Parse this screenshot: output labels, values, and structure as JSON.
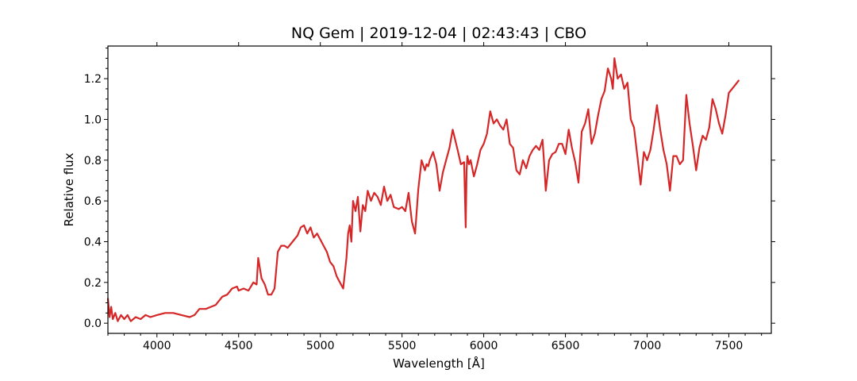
{
  "chart_data": {
    "type": "line",
    "title": "NQ Gem | 2019-12-04 | 02:43:43 | CBO",
    "xlabel": "Wavelength [Å]",
    "ylabel": "Relative flux",
    "xlim": [
      3700,
      7760
    ],
    "ylim": [
      -0.05,
      1.36
    ],
    "x_ticks": [
      4000,
      4500,
      5000,
      5500,
      6000,
      6500,
      7000,
      7500
    ],
    "x_tick_labels": [
      "4000",
      "4500",
      "5000",
      "5500",
      "6000",
      "6500",
      "7000",
      "7500"
    ],
    "y_ticks": [
      0.0,
      0.2,
      0.4,
      0.6,
      0.8,
      1.0,
      1.2
    ],
    "y_tick_labels": [
      "0.0",
      "0.2",
      "0.4",
      "0.6",
      "0.8",
      "1.0",
      "1.2"
    ],
    "grid": false,
    "series": [
      {
        "color": "#d62728",
        "x": [
          3700,
          3710,
          3720,
          3730,
          3745,
          3760,
          3780,
          3800,
          3820,
          3840,
          3870,
          3900,
          3930,
          3960,
          4000,
          4050,
          4100,
          4150,
          4200,
          4230,
          4260,
          4300,
          4330,
          4360,
          4400,
          4430,
          4460,
          4490,
          4500,
          4530,
          4560,
          4590,
          4610,
          4620,
          4640,
          4660,
          4680,
          4700,
          4720,
          4740,
          4760,
          4780,
          4800,
          4830,
          4860,
          4880,
          4900,
          4920,
          4940,
          4960,
          4980,
          5000,
          5020,
          5040,
          5060,
          5080,
          5100,
          5120,
          5140,
          5160,
          5170,
          5180,
          5190,
          5200,
          5215,
          5230,
          5245,
          5260,
          5275,
          5290,
          5310,
          5330,
          5350,
          5370,
          5390,
          5410,
          5430,
          5450,
          5480,
          5500,
          5520,
          5540,
          5560,
          5580,
          5600,
          5620,
          5640,
          5650,
          5660,
          5670,
          5690,
          5710,
          5730,
          5750,
          5770,
          5790,
          5810,
          5840,
          5860,
          5880,
          5890,
          5895,
          5900,
          5910,
          5920,
          5940,
          5960,
          5980,
          6000,
          6020,
          6040,
          6060,
          6080,
          6100,
          6120,
          6140,
          6160,
          6180,
          6200,
          6220,
          6240,
          6260,
          6280,
          6300,
          6320,
          6340,
          6360,
          6370,
          6380,
          6400,
          6420,
          6440,
          6460,
          6480,
          6500,
          6520,
          6540,
          6560,
          6580,
          6600,
          6620,
          6640,
          6660,
          6680,
          6700,
          6720,
          6740,
          6760,
          6780,
          6790,
          6800,
          6820,
          6840,
          6860,
          6880,
          6900,
          6920,
          6940,
          6960,
          6980,
          7000,
          7020,
          7040,
          7060,
          7080,
          7100,
          7120,
          7140,
          7160,
          7180,
          7200,
          7220,
          7240,
          7260,
          7280,
          7300,
          7320,
          7340,
          7360,
          7380,
          7400,
          7420,
          7440,
          7460,
          7480,
          7500,
          7520,
          7540,
          7560
        ],
        "values": [
          0.12,
          0.03,
          0.08,
          0.02,
          0.05,
          0.01,
          0.04,
          0.02,
          0.04,
          0.01,
          0.03,
          0.02,
          0.04,
          0.03,
          0.04,
          0.05,
          0.05,
          0.04,
          0.03,
          0.04,
          0.07,
          0.07,
          0.08,
          0.09,
          0.13,
          0.14,
          0.17,
          0.18,
          0.16,
          0.17,
          0.16,
          0.2,
          0.19,
          0.32,
          0.22,
          0.19,
          0.14,
          0.14,
          0.17,
          0.35,
          0.38,
          0.38,
          0.37,
          0.4,
          0.43,
          0.47,
          0.48,
          0.44,
          0.47,
          0.42,
          0.44,
          0.41,
          0.38,
          0.35,
          0.3,
          0.28,
          0.23,
          0.2,
          0.17,
          0.32,
          0.44,
          0.48,
          0.4,
          0.6,
          0.55,
          0.62,
          0.45,
          0.58,
          0.55,
          0.65,
          0.6,
          0.64,
          0.62,
          0.58,
          0.67,
          0.6,
          0.63,
          0.57,
          0.56,
          0.57,
          0.55,
          0.64,
          0.5,
          0.44,
          0.66,
          0.8,
          0.75,
          0.78,
          0.77,
          0.8,
          0.84,
          0.78,
          0.65,
          0.74,
          0.8,
          0.86,
          0.95,
          0.85,
          0.78,
          0.79,
          0.47,
          0.75,
          0.82,
          0.78,
          0.8,
          0.72,
          0.78,
          0.85,
          0.88,
          0.93,
          1.04,
          0.98,
          1.0,
          0.97,
          0.95,
          1.0,
          0.88,
          0.86,
          0.75,
          0.73,
          0.8,
          0.76,
          0.82,
          0.85,
          0.87,
          0.85,
          0.9,
          0.78,
          0.65,
          0.8,
          0.83,
          0.84,
          0.88,
          0.88,
          0.83,
          0.95,
          0.86,
          0.79,
          0.69,
          0.94,
          0.98,
          1.05,
          0.88,
          0.93,
          1.02,
          1.1,
          1.14,
          1.25,
          1.2,
          1.15,
          1.3,
          1.2,
          1.22,
          1.15,
          1.18,
          1.0,
          0.96,
          0.82,
          0.68,
          0.84,
          0.8,
          0.85,
          0.95,
          1.07,
          0.95,
          0.85,
          0.78,
          0.65,
          0.82,
          0.82,
          0.78,
          0.8,
          1.12,
          0.98,
          0.87,
          0.75,
          0.86,
          0.92,
          0.9,
          0.96,
          1.1,
          1.05,
          0.98,
          0.93,
          1.02,
          1.13,
          1.15,
          1.17,
          1.19
        ]
      }
    ]
  }
}
